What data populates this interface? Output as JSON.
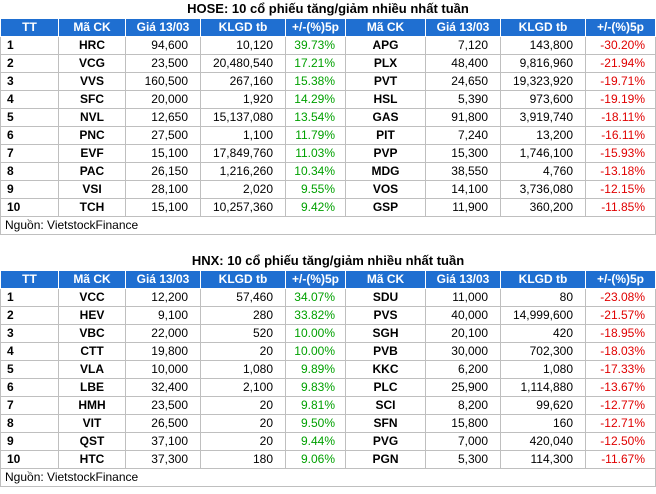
{
  "tables": [
    {
      "title": "HOSE: 10 cổ phiếu tăng/giảm nhiều nhất tuần",
      "header": [
        "TT",
        "Mã CK",
        "Giá 13/03",
        "KLGD tb",
        "+/-(%)5p",
        "Mã CK",
        "Giá 13/03",
        "KLGD tb",
        "+/-(%)5p"
      ],
      "rows": [
        [
          "1",
          "HRC",
          "94,600",
          "10,120",
          "39.73%",
          "APG",
          "7,120",
          "143,800",
          "-30.20%"
        ],
        [
          "2",
          "VCG",
          "23,500",
          "20,480,540",
          "17.21%",
          "PLX",
          "48,400",
          "9,816,960",
          "-21.94%"
        ],
        [
          "3",
          "VVS",
          "160,500",
          "267,160",
          "15.38%",
          "PVT",
          "24,650",
          "19,323,920",
          "-19.71%"
        ],
        [
          "4",
          "SFC",
          "20,000",
          "1,920",
          "14.29%",
          "HSL",
          "5,390",
          "973,600",
          "-19.19%"
        ],
        [
          "5",
          "NVL",
          "12,650",
          "15,137,080",
          "13.54%",
          "GAS",
          "91,800",
          "3,919,740",
          "-18.11%"
        ],
        [
          "6",
          "PNC",
          "27,500",
          "1,100",
          "11.79%",
          "PIT",
          "7,240",
          "13,200",
          "-16.11%"
        ],
        [
          "7",
          "EVF",
          "15,100",
          "17,849,760",
          "11.03%",
          "PVP",
          "15,300",
          "1,746,100",
          "-15.93%"
        ],
        [
          "8",
          "PAC",
          "26,150",
          "1,216,260",
          "10.34%",
          "MDG",
          "38,550",
          "4,760",
          "-13.18%"
        ],
        [
          "9",
          "VSI",
          "28,100",
          "2,020",
          "9.55%",
          "VOS",
          "14,100",
          "3,736,080",
          "-12.15%"
        ],
        [
          "10",
          "TCH",
          "15,100",
          "10,257,360",
          "9.42%",
          "GSP",
          "11,900",
          "360,200",
          "-11.85%"
        ]
      ],
      "source": "Nguồn: VietstockFinance"
    },
    {
      "title": "HNX: 10 cổ phiếu tăng/giảm nhiều nhất tuần",
      "header": [
        "TT",
        "Mã CK",
        "Giá 13/03",
        "KLGD tb",
        "+/-(%)5p",
        "Mã CK",
        "Giá 13/03",
        "KLGD tb",
        "+/-(%)5p"
      ],
      "rows": [
        [
          "1",
          "VCC",
          "12,200",
          "57,460",
          "34.07%",
          "SDU",
          "11,000",
          "80",
          "-23.08%"
        ],
        [
          "2",
          "HEV",
          "9,100",
          "280",
          "33.82%",
          "PVS",
          "40,000",
          "14,999,600",
          "-21.57%"
        ],
        [
          "3",
          "VBC",
          "22,000",
          "520",
          "10.00%",
          "SGH",
          "20,100",
          "420",
          "-18.95%"
        ],
        [
          "4",
          "CTT",
          "19,800",
          "20",
          "10.00%",
          "PVB",
          "30,000",
          "702,300",
          "-18.03%"
        ],
        [
          "5",
          "VLA",
          "10,000",
          "1,080",
          "9.89%",
          "KKC",
          "6,200",
          "1,080",
          "-17.33%"
        ],
        [
          "6",
          "LBE",
          "32,400",
          "2,100",
          "9.83%",
          "PLC",
          "25,900",
          "1,114,880",
          "-13.67%"
        ],
        [
          "7",
          "HMH",
          "23,500",
          "20",
          "9.81%",
          "SCI",
          "8,200",
          "99,620",
          "-12.77%"
        ],
        [
          "8",
          "VIT",
          "26,500",
          "20",
          "9.50%",
          "SFN",
          "15,800",
          "160",
          "-12.71%"
        ],
        [
          "9",
          "QST",
          "37,100",
          "20",
          "9.44%",
          "PVG",
          "7,000",
          "420,040",
          "-12.50%"
        ],
        [
          "10",
          "HTC",
          "37,300",
          "180",
          "9.06%",
          "PGN",
          "5,300",
          "114,300",
          "-11.67%"
        ]
      ],
      "source": "Nguồn: VietstockFinance"
    }
  ]
}
